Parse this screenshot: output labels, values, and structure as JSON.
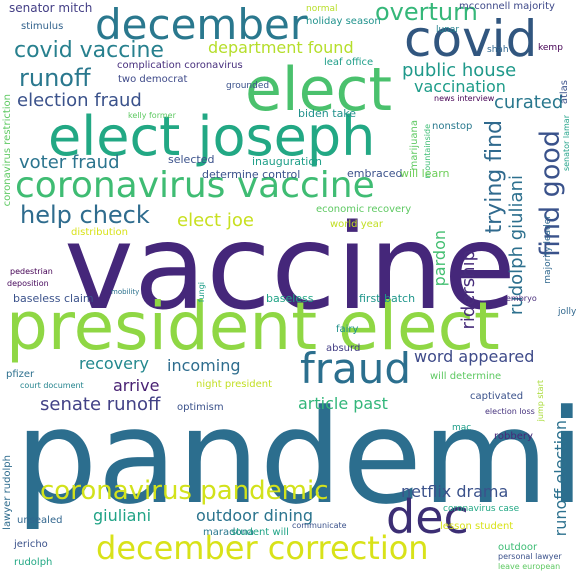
{
  "words": [
    {
      "text": "pandemic",
      "color": "#2c6e8e"
    },
    {
      "text": "vaccine",
      "color": "#45277a"
    },
    {
      "text": "president elect",
      "color": "#8fd744"
    },
    {
      "text": "elect joseph",
      "color": "#22a884"
    },
    {
      "text": "elect",
      "color": "#4ac16d"
    },
    {
      "text": "covid",
      "color": "#31567f"
    },
    {
      "text": "december",
      "color": "#2a788e"
    },
    {
      "text": "coronavirus vaccine",
      "color": "#3fbc73"
    },
    {
      "text": "fraud",
      "color": "#2b6f8e"
    },
    {
      "text": "dec",
      "color": "#3c2e74"
    },
    {
      "text": "december correction",
      "color": "#d8e219"
    },
    {
      "text": "coronavirus pandemic",
      "color": "#d2e21b"
    },
    {
      "text": "help check",
      "color": "#2f6c8e"
    },
    {
      "text": "covid vaccine",
      "color": "#27808e"
    },
    {
      "text": "find good",
      "color": "#3a528b"
    },
    {
      "text": "trying find",
      "color": "#306a8e"
    },
    {
      "text": "runoff",
      "color": "#2a788e"
    },
    {
      "text": "election fraud",
      "color": "#3b528b"
    },
    {
      "text": "voter fraud",
      "color": "#2b748e"
    },
    {
      "text": "overturn",
      "color": "#35b779"
    },
    {
      "text": "public house",
      "color": "#1f998a"
    },
    {
      "text": "vaccination",
      "color": "#1e9c89"
    },
    {
      "text": "curated",
      "color": "#2a788e"
    },
    {
      "text": "department found",
      "color": "#b5de2b"
    },
    {
      "text": "elect joe",
      "color": "#c8e020"
    },
    {
      "text": "pardon",
      "color": "#43bf71"
    },
    {
      "text": "ridership",
      "color": "#472d7b"
    },
    {
      "text": "rudolph giuliani",
      "color": "#2d708e"
    },
    {
      "text": "recovery",
      "color": "#23888e"
    },
    {
      "text": "incoming",
      "color": "#2e6d8e"
    },
    {
      "text": "word appeared",
      "color": "#3e4a89"
    },
    {
      "text": "arrive",
      "color": "#482173"
    },
    {
      "text": "senate runoff",
      "color": "#424186"
    },
    {
      "text": "article past",
      "color": "#32b67a"
    },
    {
      "text": "netflix drama",
      "color": "#3b528b"
    },
    {
      "text": "giuliani",
      "color": "#20a386"
    },
    {
      "text": "outdoor dining",
      "color": "#2b748e"
    },
    {
      "text": "runoff election",
      "color": "#2c718e"
    },
    {
      "text": "senator mitch",
      "color": "#433e85"
    },
    {
      "text": "mcconnell majority",
      "color": "#3e4989"
    },
    {
      "text": "holiday season",
      "color": "#20928c"
    },
    {
      "text": "normal",
      "color": "#b8de29"
    },
    {
      "text": "stimulus",
      "color": "#33638d"
    },
    {
      "text": "complication coronavirus",
      "color": "#472f7d"
    },
    {
      "text": "two democrat",
      "color": "#3e4a89"
    },
    {
      "text": "leaf office",
      "color": "#1f9e89"
    },
    {
      "text": "kemp",
      "color": "#440154"
    },
    {
      "text": "shah",
      "color": "#31668e"
    },
    {
      "text": "lunar",
      "color": "#26828e"
    },
    {
      "text": "atlas",
      "color": "#3b528b"
    },
    {
      "text": "news interview",
      "color": "#440154"
    },
    {
      "text": "grounded",
      "color": "#3b528b"
    },
    {
      "text": "kelly former",
      "color": "#5ec962"
    },
    {
      "text": "biden take",
      "color": "#21918c"
    },
    {
      "text": "nonstop",
      "color": "#29798e"
    },
    {
      "text": "marijuana",
      "color": "#5ec962"
    },
    {
      "text": "mountainside",
      "color": "#3dbc74"
    },
    {
      "text": "senator lamar",
      "color": "#1fa187"
    },
    {
      "text": "coronavirus restriction",
      "color": "#5ec962"
    },
    {
      "text": "selected",
      "color": "#3b528b"
    },
    {
      "text": "inauguration",
      "color": "#1f9f88"
    },
    {
      "text": "determine control",
      "color": "#3b528b"
    },
    {
      "text": "embraced",
      "color": "#3b528b"
    },
    {
      "text": "will learn",
      "color": "#6ece58"
    },
    {
      "text": "economic recovery",
      "color": "#5ec962"
    },
    {
      "text": "world year",
      "color": "#c2df23"
    },
    {
      "text": "distribution",
      "color": "#d8e219"
    },
    {
      "text": "majority leader",
      "color": "#31688e"
    },
    {
      "text": "pedestrian",
      "color": "#440154"
    },
    {
      "text": "deposition",
      "color": "#46085c"
    },
    {
      "text": "mobility",
      "color": "#2c728e"
    },
    {
      "text": "embryo",
      "color": "#472c7a"
    },
    {
      "text": "fungi",
      "color": "#1f9e89"
    },
    {
      "text": "baseless claim",
      "color": "#3b528b"
    },
    {
      "text": "baseless",
      "color": "#20a486"
    },
    {
      "text": "first batch",
      "color": "#1f968b"
    },
    {
      "text": "fairy",
      "color": "#21918c"
    },
    {
      "text": "jolly",
      "color": "#31688e"
    },
    {
      "text": "absurd",
      "color": "#433e85"
    },
    {
      "text": "pfizer",
      "color": "#2d708e"
    },
    {
      "text": "court document",
      "color": "#25848e"
    },
    {
      "text": "night president",
      "color": "#c2df23"
    },
    {
      "text": "will determine",
      "color": "#5ec962"
    },
    {
      "text": "captivated",
      "color": "#3b528b"
    },
    {
      "text": "optimism",
      "color": "#3b528b"
    },
    {
      "text": "election loss",
      "color": "#46337e"
    },
    {
      "text": "jump start",
      "color": "#a8db34"
    },
    {
      "text": "mac",
      "color": "#1f9e89"
    },
    {
      "text": "robbery",
      "color": "#482878"
    },
    {
      "text": "lawyer rudolph",
      "color": "#2f6c8e"
    },
    {
      "text": "coronavirus case",
      "color": "#22a884"
    },
    {
      "text": "unsealed",
      "color": "#31668e"
    },
    {
      "text": "communicate",
      "color": "#3b528b"
    },
    {
      "text": "lesson student",
      "color": "#d8e219"
    },
    {
      "text": "jericho",
      "color": "#3b528b"
    },
    {
      "text": "maradona",
      "color": "#2a788e"
    },
    {
      "text": "student will",
      "color": "#20a486"
    },
    {
      "text": "outdoor",
      "color": "#3dbc74"
    },
    {
      "text": "personal lawyer",
      "color": "#3b528b"
    },
    {
      "text": "rudolph",
      "color": "#22a884"
    },
    {
      "text": "leave european",
      "color": "#5ec962"
    }
  ]
}
